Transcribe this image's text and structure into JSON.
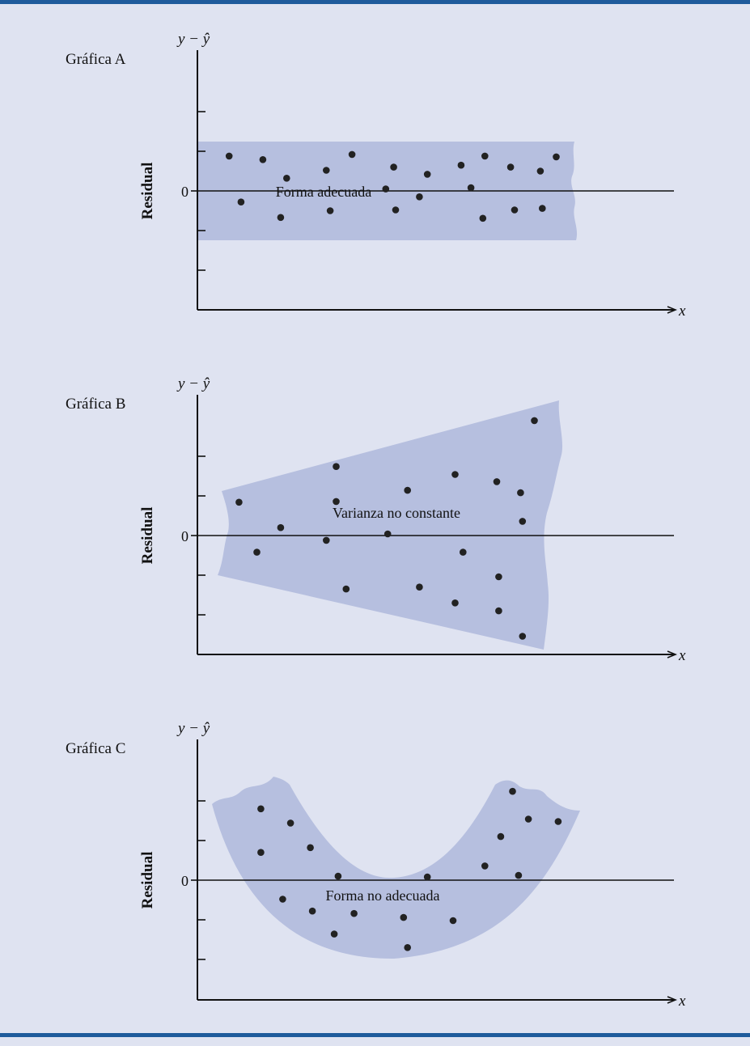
{
  "colors": {
    "band": "#b6bfdf",
    "background": "#dfe3f1",
    "rule": "#1f5b9c",
    "ink": "#111111"
  },
  "chart_data": [
    {
      "type": "scatter",
      "title": "Gráfica A",
      "ylabel": "Residual",
      "ysymbol": "y − ŷ",
      "xlabel": "x",
      "zero_label": "0",
      "annotation": "Forma adecuada",
      "band": "horizontal",
      "ylim": [
        -3,
        3
      ],
      "xlim": [
        0,
        12
      ],
      "grid": false,
      "points": [
        {
          "x": 0.8,
          "y": 0.88
        },
        {
          "x": 1.1,
          "y": -0.28
        },
        {
          "x": 1.65,
          "y": 0.79
        },
        {
          "x": 2.1,
          "y": -0.67
        },
        {
          "x": 2.25,
          "y": 0.32
        },
        {
          "x": 3.25,
          "y": 0.52
        },
        {
          "x": 3.35,
          "y": -0.5
        },
        {
          "x": 3.9,
          "y": 0.92
        },
        {
          "x": 4.75,
          "y": 0.05
        },
        {
          "x": 4.95,
          "y": 0.6
        },
        {
          "x": 5.0,
          "y": -0.48
        },
        {
          "x": 5.6,
          "y": -0.15
        },
        {
          "x": 5.8,
          "y": 0.42
        },
        {
          "x": 6.65,
          "y": 0.65
        },
        {
          "x": 6.9,
          "y": 0.08
        },
        {
          "x": 7.2,
          "y": -0.69
        },
        {
          "x": 7.25,
          "y": 0.88
        },
        {
          "x": 7.9,
          "y": 0.6
        },
        {
          "x": 8.0,
          "y": -0.48
        },
        {
          "x": 8.65,
          "y": 0.5
        },
        {
          "x": 8.7,
          "y": -0.44
        },
        {
          "x": 9.05,
          "y": 0.86
        }
      ]
    },
    {
      "type": "scatter",
      "title": "Gráfica B",
      "ylabel": "Residual",
      "ysymbol": "y − ŷ",
      "xlabel": "x",
      "zero_label": "0",
      "annotation": "Varianza no constante",
      "band": "funnel",
      "ylim": [
        -3,
        3
      ],
      "xlim": [
        0,
        12
      ],
      "grid": false,
      "points": [
        {
          "x": 1.05,
          "y": 0.84
        },
        {
          "x": 1.5,
          "y": -0.42
        },
        {
          "x": 2.1,
          "y": 0.2
        },
        {
          "x": 3.25,
          "y": -0.12
        },
        {
          "x": 3.5,
          "y": 1.74
        },
        {
          "x": 3.5,
          "y": 0.86
        },
        {
          "x": 3.75,
          "y": -1.35
        },
        {
          "x": 4.8,
          "y": 0.04
        },
        {
          "x": 5.3,
          "y": 1.14
        },
        {
          "x": 5.6,
          "y": -1.3
        },
        {
          "x": 6.5,
          "y": 1.54
        },
        {
          "x": 6.5,
          "y": -1.7
        },
        {
          "x": 6.7,
          "y": -0.42
        },
        {
          "x": 7.55,
          "y": 1.36
        },
        {
          "x": 7.6,
          "y": -1.04
        },
        {
          "x": 7.6,
          "y": -1.9
        },
        {
          "x": 8.15,
          "y": 1.08
        },
        {
          "x": 8.2,
          "y": 0.36
        },
        {
          "x": 8.2,
          "y": -2.54
        },
        {
          "x": 8.5,
          "y": 2.9
        }
      ]
    },
    {
      "type": "scatter",
      "title": "Gráfica C",
      "ylabel": "Residual",
      "ysymbol": "y − ŷ",
      "xlabel": "x",
      "zero_label": "0",
      "annotation": "Forma no adecuada",
      "band": "u-curve",
      "ylim": [
        -3,
        3
      ],
      "xlim": [
        0,
        12
      ],
      "grid": false,
      "points": [
        {
          "x": 1.6,
          "y": 1.8
        },
        {
          "x": 1.6,
          "y": 0.7
        },
        {
          "x": 2.15,
          "y": -0.48
        },
        {
          "x": 2.35,
          "y": 1.44
        },
        {
          "x": 2.9,
          "y": -0.78
        },
        {
          "x": 2.85,
          "y": 0.82
        },
        {
          "x": 3.45,
          "y": -1.36
        },
        {
          "x": 3.55,
          "y": 0.1
        },
        {
          "x": 3.95,
          "y": -0.84
        },
        {
          "x": 5.2,
          "y": -0.94
        },
        {
          "x": 5.3,
          "y": -1.7
        },
        {
          "x": 5.8,
          "y": 0.08
        },
        {
          "x": 6.45,
          "y": -1.02
        },
        {
          "x": 7.25,
          "y": 0.36
        },
        {
          "x": 7.65,
          "y": 1.1
        },
        {
          "x": 7.95,
          "y": 2.24
        },
        {
          "x": 8.1,
          "y": 0.12
        },
        {
          "x": 8.35,
          "y": 1.54
        },
        {
          "x": 9.1,
          "y": 1.48
        }
      ]
    }
  ]
}
